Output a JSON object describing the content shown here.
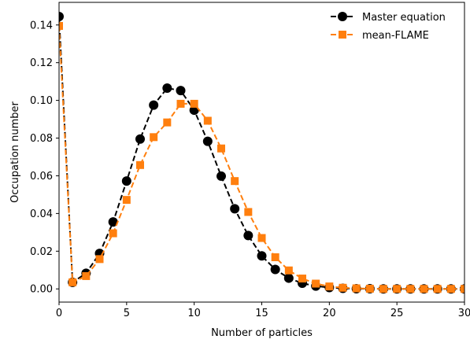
{
  "chart_data": {
    "type": "line",
    "xlabel": "Number of particles",
    "ylabel": "Occupation number",
    "xlim": [
      0,
      30
    ],
    "ylim": [
      -0.007,
      0.152
    ],
    "x_ticks": [
      0,
      5,
      10,
      15,
      20,
      25,
      30
    ],
    "x_tick_labels": [
      "0",
      "5",
      "10",
      "15",
      "20",
      "25",
      "30"
    ],
    "y_ticks": [
      0.0,
      0.02,
      0.04,
      0.06,
      0.08,
      0.1,
      0.12,
      0.14
    ],
    "y_tick_labels": [
      "0.00",
      "0.02",
      "0.04",
      "0.06",
      "0.08",
      "0.10",
      "0.12",
      "0.14"
    ],
    "grid": false,
    "legend_position": "top-right",
    "series": [
      {
        "name": "Master equation",
        "color": "#000000",
        "marker": "circle",
        "line": "dashed",
        "x": [
          0,
          1,
          2,
          3,
          4,
          5,
          6,
          7,
          8,
          9,
          10,
          11,
          12,
          13,
          14,
          15,
          16,
          17,
          18,
          19,
          20,
          21,
          22,
          23,
          24,
          25,
          26,
          27,
          28,
          29,
          30
        ],
        "y": [
          0.1445,
          0.0035,
          0.0083,
          0.0188,
          0.0355,
          0.0572,
          0.0795,
          0.0975,
          0.1065,
          0.1052,
          0.0948,
          0.0783,
          0.0598,
          0.0425,
          0.0283,
          0.0175,
          0.0103,
          0.0057,
          0.003,
          0.0015,
          0.0007,
          0.0003,
          0.0001,
          0.0001,
          0.0,
          0.0,
          0.0,
          0.0,
          0.0,
          0.0,
          0.0
        ]
      },
      {
        "name": "mean-FLAME",
        "color": "#ff7f0e",
        "marker": "square",
        "line": "dashed",
        "x": [
          0,
          1,
          2,
          3,
          4,
          5,
          6,
          7,
          8,
          9,
          10,
          11,
          12,
          13,
          14,
          15,
          16,
          17,
          18,
          19,
          20,
          21,
          22,
          23,
          24,
          25,
          26,
          27,
          28,
          29,
          30
        ],
        "y": [
          0.1395,
          0.0035,
          0.0068,
          0.0158,
          0.0295,
          0.0472,
          0.0657,
          0.0805,
          0.0883,
          0.0982,
          0.0982,
          0.0892,
          0.0745,
          0.0572,
          0.0408,
          0.027,
          0.0168,
          0.0098,
          0.0055,
          0.0028,
          0.0013,
          0.0006,
          0.0003,
          0.0001,
          0.0,
          0.0,
          0.0,
          0.0,
          0.0,
          0.0,
          0.0
        ]
      }
    ]
  }
}
